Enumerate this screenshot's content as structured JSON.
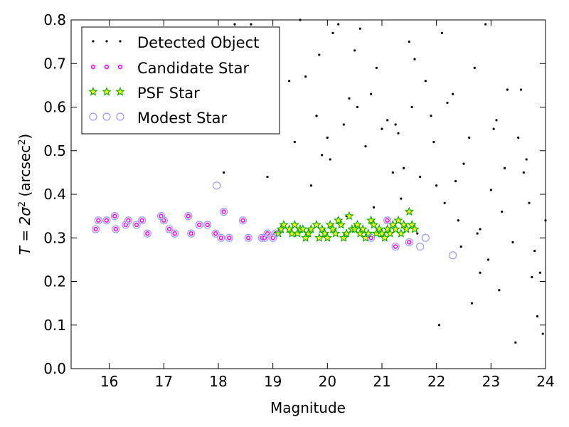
{
  "chart_data": {
    "type": "scatter",
    "title": "",
    "xlabel": "Magnitude",
    "ylabel_parts": [
      "T = 2σ",
      "2",
      " (arcsec",
      "2",
      ")"
    ],
    "xlim": [
      15.3,
      24
    ],
    "ylim": [
      0.0,
      0.8
    ],
    "xticks": [
      16,
      17,
      18,
      19,
      20,
      21,
      22,
      23,
      24
    ],
    "yticks": [
      0.0,
      0.1,
      0.2,
      0.3,
      0.4,
      0.5,
      0.6,
      0.7,
      0.8
    ],
    "xtick_labels": [
      "16",
      "17",
      "18",
      "19",
      "20",
      "21",
      "22",
      "23",
      "24"
    ],
    "ytick_labels": [
      "0.0",
      "0.1",
      "0.2",
      "0.3",
      "0.4",
      "0.5",
      "0.6",
      "0.7",
      "0.8"
    ],
    "grid": false,
    "legend_position": "top-left",
    "series": [
      {
        "name": "Detected Object",
        "marker": "dot",
        "color": "#000000",
        "x": [
          18.1,
          18.3,
          18.6,
          18.9,
          19.1,
          19.3,
          19.4,
          19.6,
          19.7,
          19.8,
          19.9,
          20.0,
          20.1,
          20.2,
          20.3,
          20.4,
          20.5,
          20.6,
          20.7,
          20.8,
          20.9,
          21.0,
          21.1,
          21.2,
          21.3,
          21.4,
          21.5,
          21.6,
          21.7,
          21.8,
          21.9,
          22.0,
          22.1,
          22.2,
          22.3,
          22.4,
          22.5,
          22.6,
          22.7,
          22.8,
          22.9,
          23.0,
          23.1,
          23.2,
          23.3,
          23.4,
          23.5,
          23.6,
          23.7,
          23.8,
          23.9,
          24.0,
          19.5,
          20.05,
          21.25,
          22.05,
          22.65,
          23.45,
          23.85,
          22.8,
          21.65,
          20.55,
          19.85,
          23.25,
          22.45,
          21.35,
          20.85,
          23.65,
          22.95,
          21.95,
          23.15,
          22.35,
          23.55,
          22.75,
          23.05,
          23.95,
          22.15,
          21.55,
          20.35,
          23.75
        ],
        "y": [
          0.45,
          0.79,
          0.79,
          0.44,
          0.57,
          0.66,
          0.52,
          0.67,
          0.42,
          0.58,
          0.49,
          0.53,
          0.77,
          0.79,
          0.56,
          0.62,
          0.73,
          0.78,
          0.51,
          0.63,
          0.69,
          0.55,
          0.57,
          0.45,
          0.54,
          0.46,
          0.75,
          0.71,
          0.44,
          0.66,
          0.58,
          0.42,
          0.77,
          0.61,
          0.63,
          0.34,
          0.47,
          0.53,
          0.69,
          0.32,
          0.79,
          0.41,
          0.57,
          0.36,
          0.64,
          0.29,
          0.53,
          0.45,
          0.38,
          0.27,
          0.22,
          0.34,
          0.8,
          0.48,
          0.56,
          0.1,
          0.15,
          0.06,
          0.12,
          0.22,
          0.31,
          0.6,
          0.72,
          0.46,
          0.28,
          0.39,
          0.37,
          0.48,
          0.25,
          0.52,
          0.18,
          0.43,
          0.64,
          0.31,
          0.55,
          0.08,
          0.38,
          0.6,
          0.35,
          0.21
        ]
      },
      {
        "name": "Candidate Star",
        "marker": "circle-small",
        "color": "#ff00ff",
        "x": [
          15.75,
          15.8,
          15.95,
          16.1,
          16.12,
          16.3,
          16.35,
          16.5,
          16.6,
          16.7,
          16.95,
          17.0,
          17.1,
          17.2,
          17.45,
          17.5,
          17.65,
          17.8,
          17.95,
          18.05,
          18.1,
          18.2,
          18.45,
          18.55,
          18.8,
          18.85,
          18.9,
          19.0,
          19.05,
          20.8,
          21.1,
          21.25,
          21.5
        ],
        "y": [
          0.32,
          0.34,
          0.34,
          0.35,
          0.32,
          0.33,
          0.34,
          0.33,
          0.34,
          0.31,
          0.35,
          0.34,
          0.32,
          0.31,
          0.35,
          0.31,
          0.33,
          0.33,
          0.31,
          0.3,
          0.36,
          0.3,
          0.34,
          0.3,
          0.3,
          0.3,
          0.31,
          0.3,
          0.31,
          0.3,
          0.34,
          0.28,
          0.29
        ]
      },
      {
        "name": "PSF Star",
        "marker": "star",
        "color": "#00aa00",
        "x": [
          19.1,
          19.15,
          19.2,
          19.3,
          19.35,
          19.4,
          19.45,
          19.5,
          19.55,
          19.6,
          19.65,
          19.7,
          19.8,
          19.85,
          19.9,
          19.95,
          20.0,
          20.05,
          20.1,
          20.15,
          20.2,
          20.25,
          20.3,
          20.35,
          20.4,
          20.45,
          20.5,
          20.55,
          20.6,
          20.65,
          20.7,
          20.75,
          20.8,
          20.85,
          20.9,
          20.95,
          21.0,
          21.05,
          21.1,
          21.15,
          21.2,
          21.25,
          21.3,
          21.35,
          21.4,
          21.45,
          21.5,
          21.55,
          21.6
        ],
        "y": [
          0.31,
          0.32,
          0.33,
          0.32,
          0.31,
          0.33,
          0.31,
          0.32,
          0.32,
          0.3,
          0.31,
          0.32,
          0.33,
          0.3,
          0.32,
          0.31,
          0.3,
          0.33,
          0.32,
          0.31,
          0.34,
          0.33,
          0.3,
          0.31,
          0.35,
          0.32,
          0.32,
          0.33,
          0.31,
          0.32,
          0.3,
          0.31,
          0.34,
          0.33,
          0.31,
          0.32,
          0.31,
          0.3,
          0.32,
          0.31,
          0.33,
          0.32,
          0.34,
          0.31,
          0.33,
          0.32,
          0.36,
          0.33,
          0.32
        ]
      },
      {
        "name": "Modest Star",
        "marker": "ring",
        "color": "#9999ff",
        "x": [
          15.75,
          15.8,
          15.95,
          16.1,
          16.12,
          16.3,
          16.35,
          16.5,
          16.6,
          16.7,
          16.95,
          17.0,
          17.1,
          17.2,
          17.45,
          17.5,
          17.65,
          17.8,
          17.95,
          18.05,
          18.1,
          18.2,
          18.45,
          18.55,
          18.8,
          18.85,
          18.9,
          19.0,
          19.05,
          20.8,
          21.1,
          21.25,
          21.5,
          17.97,
          21.7,
          21.8,
          22.3
        ],
        "y": [
          0.32,
          0.34,
          0.34,
          0.35,
          0.32,
          0.33,
          0.34,
          0.33,
          0.34,
          0.31,
          0.35,
          0.34,
          0.32,
          0.31,
          0.35,
          0.31,
          0.33,
          0.33,
          0.31,
          0.3,
          0.36,
          0.3,
          0.34,
          0.3,
          0.3,
          0.3,
          0.31,
          0.3,
          0.31,
          0.3,
          0.34,
          0.28,
          0.29,
          0.42,
          0.28,
          0.3,
          0.26
        ]
      }
    ]
  },
  "colors": {
    "axis": "#000000",
    "background": "#ffffff"
  }
}
